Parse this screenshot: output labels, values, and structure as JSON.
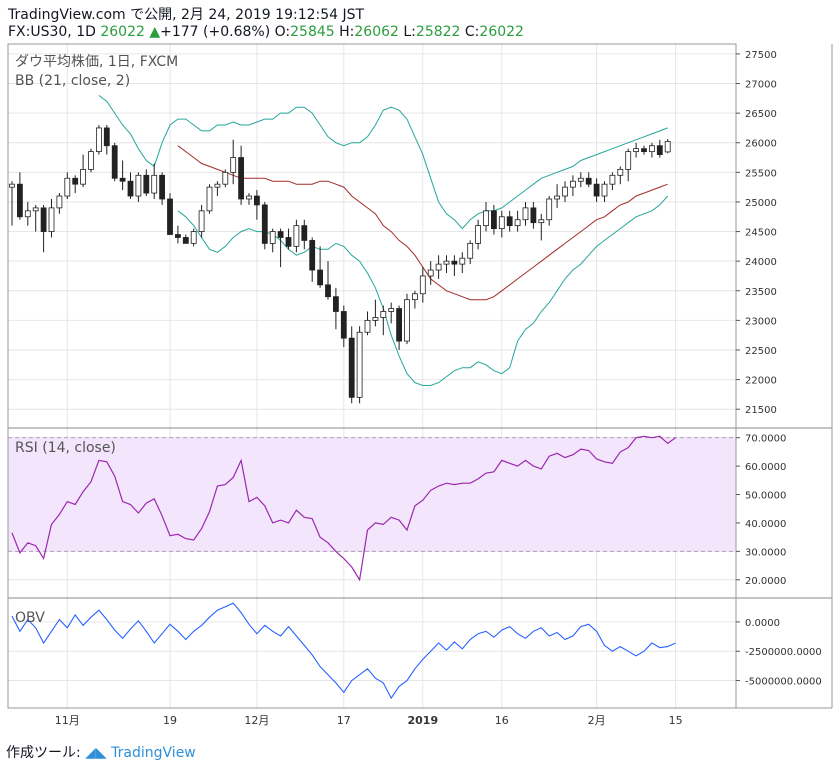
{
  "header": {
    "brand": "TradingView.com",
    "published": "で公開, 2月 24, 2019 19:12:54 JST",
    "symbol": "FX:US30, 1D",
    "last": "26022",
    "change": "+177 (+0.68%)",
    "o_label": "O:",
    "o": "25845",
    "h_label": "H:",
    "h": "26062",
    "l_label": "L:",
    "l": "25822",
    "c_label": "C:",
    "c": "26022"
  },
  "footer": {
    "label": "作成ツール:",
    "brand": "TradingView"
  },
  "colors": {
    "up": "#2a9d3f",
    "bb_band": "#26a69a",
    "bb_basis": "#a52a2a",
    "rsi_line": "#9c27b0",
    "rsi_fill": "#f3e5fb",
    "obv_line": "#2962ff",
    "grid": "#e6e6e6"
  },
  "chart_data": [
    {
      "type": "candlestick",
      "title": "ダウ平均株価, 1日, FXCM",
      "indicator_label": "BB (21, close, 2)",
      "ylim": [
        21250,
        27600
      ],
      "yticks": [
        "21500",
        "22000",
        "22500",
        "23000",
        "23500",
        "24000",
        "24500",
        "25000",
        "25500",
        "26000",
        "26500",
        "27000",
        "27500"
      ],
      "x_ticks": [
        {
          "label": "11月",
          "i": 7
        },
        {
          "label": "19",
          "i": 20
        },
        {
          "label": "12月",
          "i": 31
        },
        {
          "label": "17",
          "i": 42
        },
        {
          "label": "2019",
          "i": 52
        },
        {
          "label": "16",
          "i": 62
        },
        {
          "label": "2月",
          "i": 74
        },
        {
          "label": "15",
          "i": 84
        }
      ],
      "ohlc": [
        [
          25250,
          25350,
          24600,
          25300
        ],
        [
          25300,
          25500,
          24700,
          24750
        ],
        [
          24750,
          25000,
          24600,
          24850
        ],
        [
          24850,
          24950,
          24500,
          24900
        ],
        [
          24900,
          24950,
          24150,
          24500
        ],
        [
          24500,
          25050,
          24400,
          24900
        ],
        [
          24900,
          25150,
          24800,
          25100
        ],
        [
          25100,
          25500,
          25050,
          25400
        ],
        [
          25400,
          25450,
          25150,
          25300
        ],
        [
          25300,
          25800,
          25250,
          25550
        ],
        [
          25550,
          25900,
          25500,
          25850
        ],
        [
          25850,
          26300,
          25800,
          26250
        ],
        [
          26250,
          26300,
          25800,
          25950
        ],
        [
          25950,
          26000,
          25350,
          25400
        ],
        [
          25400,
          25700,
          25200,
          25350
        ],
        [
          25350,
          25500,
          25050,
          25100
        ],
        [
          25100,
          25500,
          25000,
          25450
        ],
        [
          25450,
          25550,
          25100,
          25150
        ],
        [
          25150,
          25650,
          25050,
          25450
        ],
        [
          25450,
          25500,
          24950,
          25050
        ],
        [
          25050,
          25150,
          24450,
          24450
        ],
        [
          24450,
          24600,
          24300,
          24400
        ],
        [
          24400,
          24450,
          24300,
          24300
        ],
        [
          24300,
          24550,
          24250,
          24500
        ],
        [
          24500,
          24950,
          24400,
          24850
        ],
        [
          24850,
          25300,
          24800,
          25250
        ],
        [
          25250,
          25350,
          25100,
          25300
        ],
        [
          25300,
          25550,
          25250,
          25500
        ],
        [
          25500,
          26050,
          25300,
          25750
        ],
        [
          25750,
          25950,
          24950,
          25050
        ],
        [
          25050,
          25150,
          24950,
          25100
        ],
        [
          25100,
          25200,
          24700,
          24950
        ],
        [
          24950,
          25000,
          24200,
          24300
        ],
        [
          24300,
          24550,
          24150,
          24500
        ],
        [
          24500,
          24550,
          23900,
          24400
        ],
        [
          24400,
          24550,
          24200,
          24250
        ],
        [
          24250,
          24700,
          24150,
          24600
        ],
        [
          24600,
          24700,
          24200,
          24350
        ],
        [
          24350,
          24400,
          23650,
          23850
        ],
        [
          23850,
          24250,
          23550,
          23600
        ],
        [
          23600,
          24000,
          23350,
          23400
        ],
        [
          23400,
          23550,
          22850,
          23150
        ],
        [
          23150,
          23250,
          22550,
          22700
        ],
        [
          22700,
          22900,
          21600,
          21700
        ],
        [
          21700,
          22900,
          21600,
          22800
        ],
        [
          22800,
          23150,
          22750,
          23000
        ],
        [
          23000,
          23350,
          22900,
          23050
        ],
        [
          23050,
          23250,
          22750,
          23150
        ],
        [
          23150,
          23300,
          22950,
          23200
        ],
        [
          23200,
          23250,
          22500,
          22650
        ],
        [
          22650,
          23450,
          22600,
          23350
        ],
        [
          23350,
          23500,
          23200,
          23450
        ],
        [
          23450,
          23900,
          23300,
          23750
        ],
        [
          23750,
          24000,
          23600,
          23850
        ],
        [
          23850,
          24100,
          23700,
          23950
        ],
        [
          23950,
          24100,
          23800,
          24000
        ],
        [
          24000,
          24100,
          23750,
          23950
        ],
        [
          23950,
          24150,
          23800,
          24050
        ],
        [
          24050,
          24350,
          23950,
          24300
        ],
        [
          24300,
          24700,
          24200,
          24600
        ],
        [
          24600,
          25000,
          24500,
          24850
        ],
        [
          24850,
          24950,
          24450,
          24550
        ],
        [
          24550,
          24850,
          24400,
          24750
        ],
        [
          24750,
          24850,
          24500,
          24600
        ],
        [
          24600,
          24850,
          24500,
          24700
        ],
        [
          24700,
          25000,
          24600,
          24900
        ],
        [
          24900,
          25000,
          24550,
          24650
        ],
        [
          24650,
          24800,
          24350,
          24700
        ],
        [
          24700,
          25100,
          24600,
          25050
        ],
        [
          25050,
          25300,
          24900,
          25100
        ],
        [
          25100,
          25350,
          25000,
          25250
        ],
        [
          25250,
          25450,
          25100,
          25350
        ],
        [
          25350,
          25500,
          25250,
          25400
        ],
        [
          25400,
          25500,
          25250,
          25300
        ],
        [
          25300,
          25400,
          25000,
          25100
        ],
        [
          25100,
          25350,
          25000,
          25300
        ],
        [
          25300,
          25500,
          25200,
          25450
        ],
        [
          25450,
          25600,
          25300,
          25550
        ],
        [
          25550,
          25900,
          25350,
          25850
        ],
        [
          25850,
          26000,
          25750,
          25900
        ],
        [
          25900,
          25950,
          25800,
          25850
        ],
        [
          25850,
          26000,
          25750,
          25950
        ],
        [
          25950,
          26050,
          25750,
          25800
        ],
        [
          25845,
          26062,
          25822,
          26022
        ]
      ],
      "bb_upper": [
        26800,
        26700,
        26500,
        26300,
        26150,
        25900,
        25700,
        25600,
        26000,
        26300,
        26400,
        26400,
        26300,
        26200,
        26200,
        26300,
        26300,
        26350,
        26300,
        26300,
        26350,
        26400,
        26400,
        26500,
        26500,
        26600,
        26600,
        26500,
        26300,
        26100,
        26000,
        25950,
        26000,
        26000,
        26100,
        26300,
        26550,
        26600,
        26550,
        26400,
        26100,
        25800,
        25400,
        25000,
        24800,
        24700,
        24550,
        24700,
        24800,
        24850,
        24850,
        24900,
        25000,
        25100,
        25200,
        25300,
        25400,
        25450,
        25500,
        25550,
        25600,
        25700,
        25750,
        25800,
        25850,
        25900,
        25950,
        26000,
        26050,
        26100,
        26150,
        26200,
        26250
      ],
      "bb_basis": [
        25950,
        25850,
        25750,
        25650,
        25600,
        25550,
        25500,
        25450,
        25400,
        25400,
        25400,
        25400,
        25350,
        25350,
        25350,
        25300,
        25300,
        25300,
        25350,
        25350,
        25300,
        25250,
        25100,
        25000,
        24900,
        24800,
        24600,
        24500,
        24350,
        24250,
        24100,
        23900,
        23700,
        23600,
        23500,
        23450,
        23400,
        23350,
        23350,
        23350,
        23400,
        23500,
        23600,
        23700,
        23800,
        23900,
        24000,
        24100,
        24200,
        24300,
        24400,
        24500,
        24600,
        24700,
        24750,
        24850,
        24950,
        25000,
        25100,
        25150,
        25200,
        25250,
        25300
      ],
      "bb_lower": [
        24850,
        24750,
        24600,
        24400,
        24200,
        24150,
        24250,
        24400,
        24500,
        24550,
        24500,
        24500,
        24450,
        24350,
        24200,
        24100,
        24150,
        24250,
        24200,
        24200,
        24300,
        24250,
        24100,
        24000,
        23800,
        23550,
        23200,
        22750,
        22400,
        22100,
        21950,
        21900,
        21900,
        21950,
        22050,
        22150,
        22200,
        22200,
        22300,
        22250,
        22150,
        22100,
        22200,
        22650,
        22850,
        22950,
        23150,
        23300,
        23500,
        23700,
        23850,
        23950,
        24100,
        24250,
        24350,
        24450,
        24550,
        24650,
        24750,
        24800,
        24850,
        24950,
        25100
      ]
    },
    {
      "type": "line",
      "title": "RSI (14, close)",
      "ylim": [
        15,
        72
      ],
      "band": [
        30,
        70
      ],
      "yticks": [
        "20.0000",
        "30.0000",
        "40.0000",
        "50.0000",
        "60.0000",
        "70.0000"
      ],
      "values": [
        36.5,
        29.5,
        33.0,
        32.0,
        27.5,
        39.5,
        43.0,
        47.5,
        46.5,
        51.0,
        54.5,
        62.0,
        61.5,
        56.5,
        47.5,
        46.5,
        43.5,
        47.0,
        48.5,
        42.5,
        35.5,
        36.0,
        34.5,
        34.0,
        38.0,
        44.0,
        53.0,
        53.5,
        56.0,
        62.0,
        47.5,
        49.0,
        46.0,
        40.0,
        41.0,
        40.0,
        44.5,
        42.0,
        41.5,
        35.0,
        33.0,
        30.0,
        27.5,
        24.5,
        20.0,
        37.5,
        40.0,
        39.5,
        42.0,
        41.0,
        37.5,
        46.0,
        48.0,
        51.5,
        53.0,
        54.0,
        53.5,
        54.0,
        54.0,
        55.5,
        57.5,
        58.0,
        62.0,
        61.0,
        60.0,
        62.0,
        60.0,
        59.0,
        63.5,
        64.5,
        63.0,
        64.0,
        66.0,
        65.5,
        62.5,
        61.5,
        61.0,
        65.0,
        66.5,
        70.0,
        70.5,
        70.0,
        70.5,
        68.0,
        70.0
      ]
    },
    {
      "type": "line",
      "title": "OBV",
      "ylim": [
        -7000000,
        1700000
      ],
      "yticks": [
        "-5000000.0000",
        "-2500000.0000",
        "0.0000"
      ],
      "values": [
        500000,
        -800000,
        200000,
        -500000,
        -1800000,
        -800000,
        200000,
        -500000,
        600000,
        -300000,
        400000,
        1000000,
        200000,
        -700000,
        -1400000,
        -600000,
        100000,
        -800000,
        -1800000,
        -1000000,
        -200000,
        -800000,
        -1500000,
        -800000,
        -300000,
        400000,
        1000000,
        1300000,
        1600000,
        800000,
        -200000,
        -1000000,
        -300000,
        -800000,
        -1200000,
        -400000,
        -1200000,
        -2000000,
        -2800000,
        -3800000,
        -4500000,
        -5200000,
        -6000000,
        -5000000,
        -4500000,
        -4000000,
        -4800000,
        -5200000,
        -6500000,
        -5500000,
        -5000000,
        -4000000,
        -3200000,
        -2500000,
        -1800000,
        -2400000,
        -1700000,
        -2300000,
        -1500000,
        -1000000,
        -800000,
        -1300000,
        -700000,
        -400000,
        -1000000,
        -1400000,
        -800000,
        -500000,
        -1200000,
        -900000,
        -1500000,
        -1200000,
        -400000,
        -200000,
        -800000,
        -2000000,
        -2500000,
        -2100000,
        -2500000,
        -2900000,
        -2500000,
        -1800000,
        -2200000,
        -2100000,
        -1800000
      ]
    }
  ]
}
